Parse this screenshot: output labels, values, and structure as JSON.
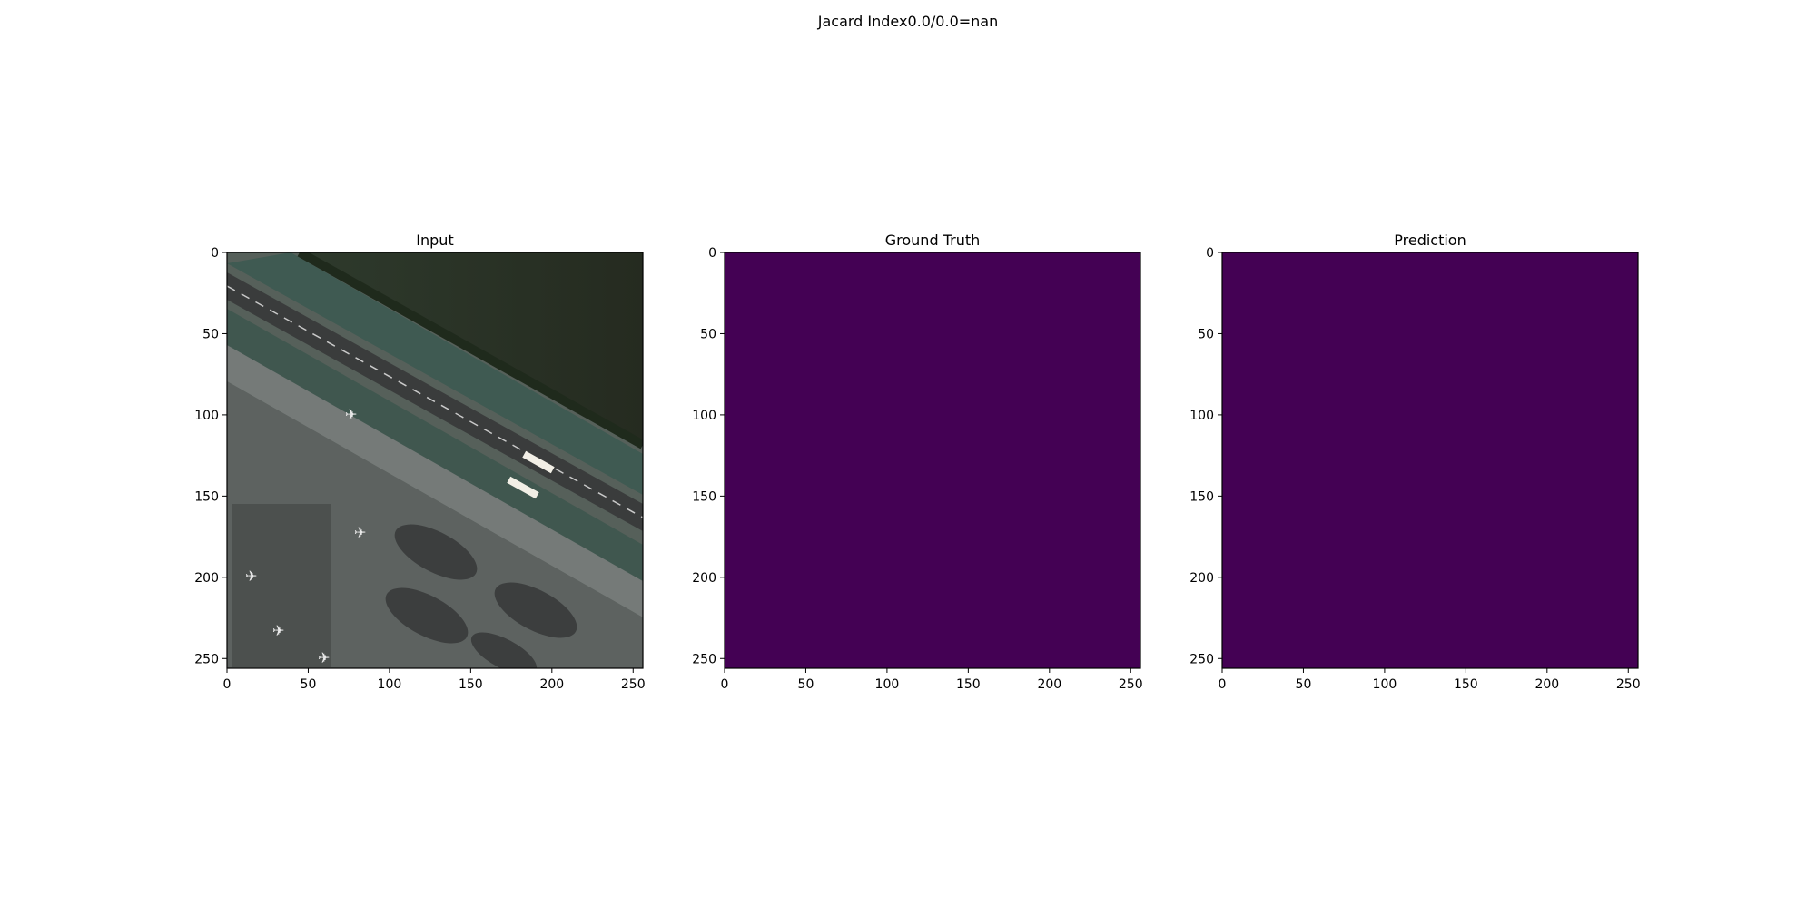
{
  "figure": {
    "suptitle": "Jacard Index0.0/0.0=nan"
  },
  "colors": {
    "viridis_min": "#440154",
    "axis_line": "#000000",
    "background": "#ffffff"
  },
  "chart_data": [
    {
      "type": "heatmap",
      "title": "Input",
      "content": "rgb-aerial-image",
      "xlim": [
        0,
        256
      ],
      "ylim": [
        256,
        0
      ],
      "xticks": [
        0,
        50,
        100,
        150,
        200,
        250
      ],
      "yticks": [
        0,
        50,
        100,
        150,
        200,
        250
      ],
      "grid": false
    },
    {
      "type": "heatmap",
      "title": "Ground Truth",
      "content": "uniform-mask",
      "colormap": "viridis",
      "value": 0,
      "xlim": [
        0,
        256
      ],
      "ylim": [
        256,
        0
      ],
      "xticks": [
        0,
        50,
        100,
        150,
        200,
        250
      ],
      "yticks": [
        0,
        50,
        100,
        150,
        200,
        250
      ],
      "grid": false
    },
    {
      "type": "heatmap",
      "title": "Prediction",
      "content": "uniform-mask",
      "colormap": "viridis",
      "value": 0,
      "xlim": [
        0,
        256
      ],
      "ylim": [
        256,
        0
      ],
      "xticks": [
        0,
        50,
        100,
        150,
        200,
        250
      ],
      "yticks": [
        0,
        50,
        100,
        150,
        200,
        250
      ],
      "grid": false
    }
  ]
}
